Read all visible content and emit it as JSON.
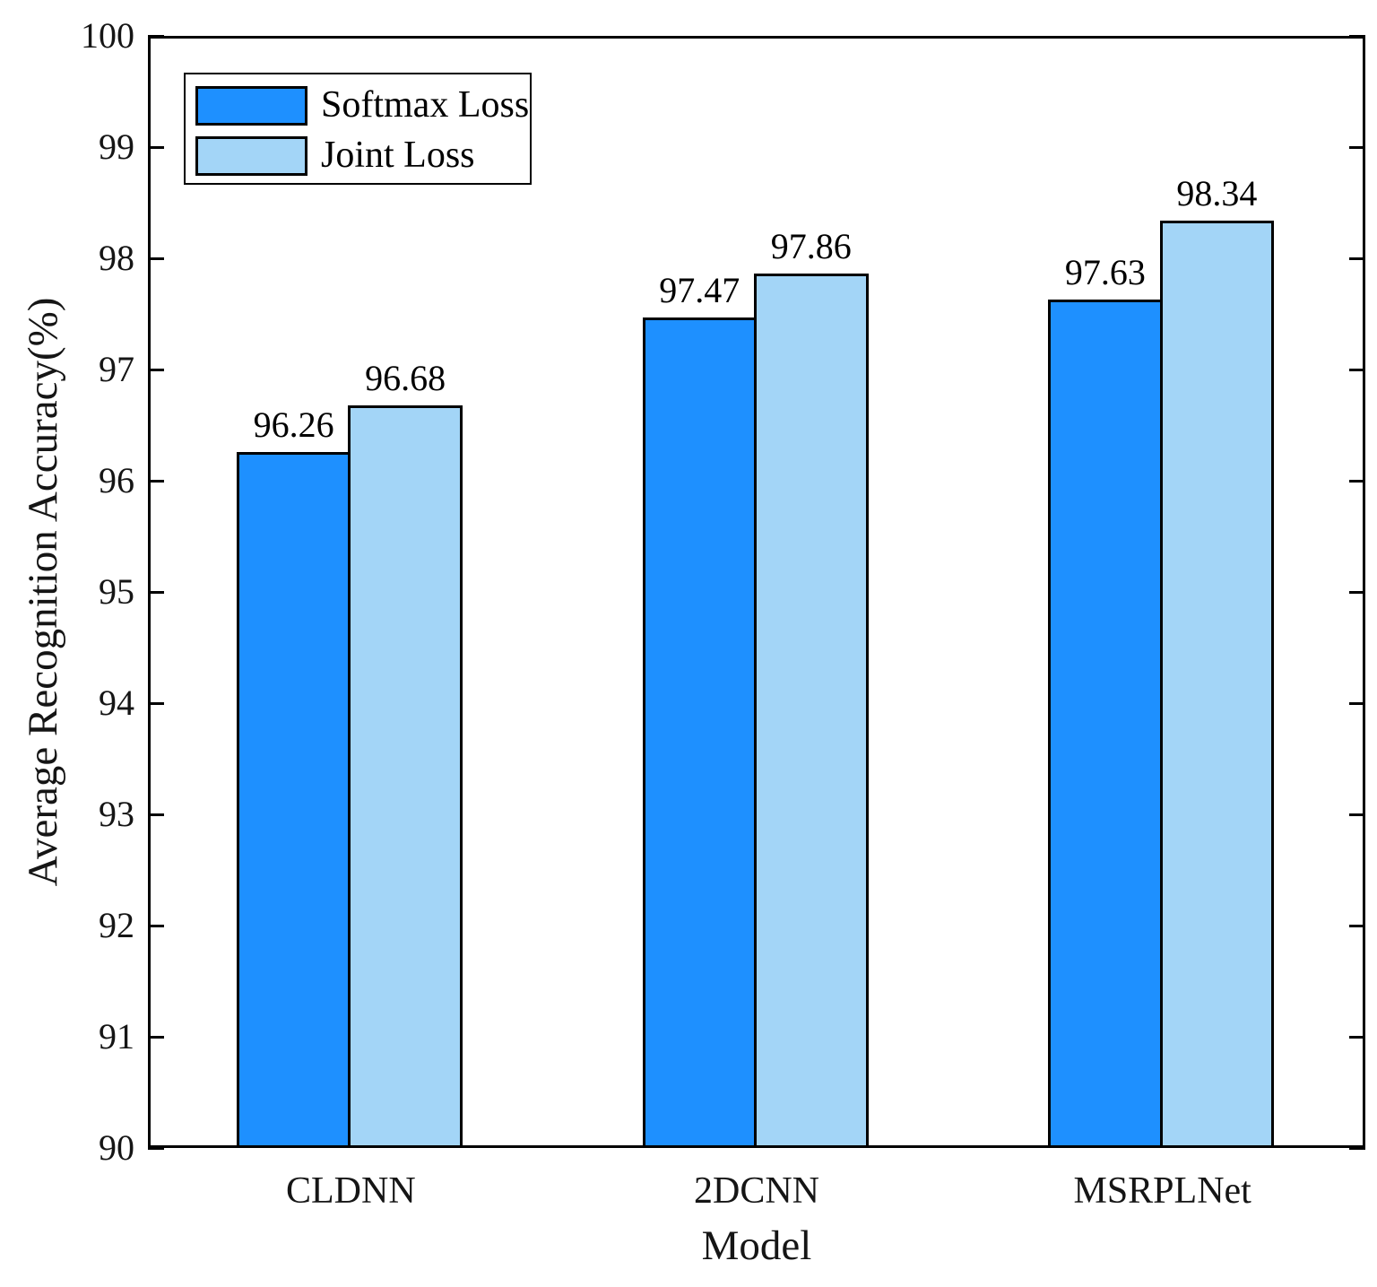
{
  "chart_data": {
    "type": "bar",
    "title": "",
    "xlabel": "Model",
    "ylabel": "Average Recognition Accuracy(%)",
    "categories": [
      "CLDNN",
      "2DCNN",
      "MSRPLNet"
    ],
    "series": [
      {
        "name": "Softmax Loss",
        "color": "#1E90FF",
        "values": [
          96.26,
          97.47,
          97.63
        ]
      },
      {
        "name": "Joint Loss",
        "color": "#A3D5F7",
        "values": [
          96.68,
          97.86,
          98.34
        ]
      }
    ],
    "ylim": [
      90,
      100
    ],
    "yticks": [
      90,
      91,
      92,
      93,
      94,
      95,
      96,
      97,
      98,
      99,
      100
    ],
    "value_labels": [
      "96.26",
      "96.68",
      "97.47",
      "97.86",
      "97.63",
      "98.34"
    ],
    "bar_edge_color": "#000000",
    "grid": false,
    "legend_position": "top-left",
    "frame": "box"
  }
}
